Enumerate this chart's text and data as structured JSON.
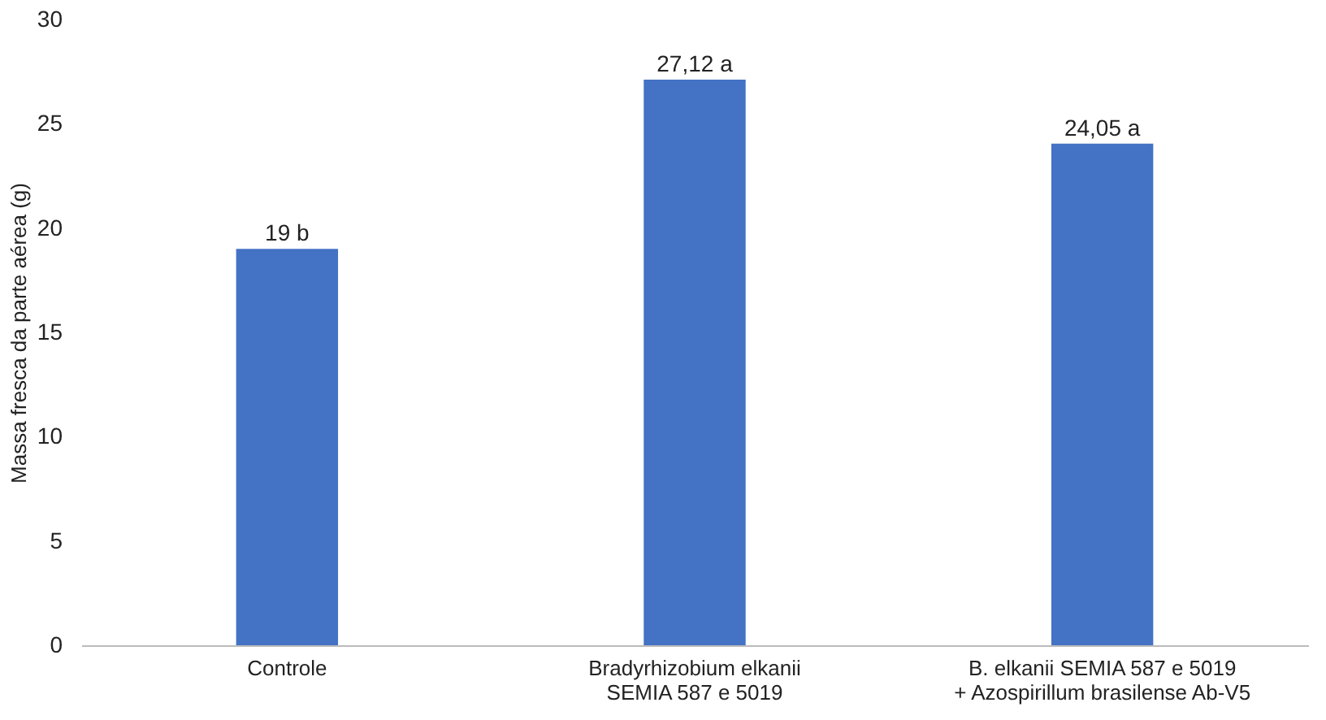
{
  "chart_data": {
    "type": "bar",
    "ylabel": "Massa fresca da parte aérea (g)",
    "categories": [
      "Controle",
      "Bradyrhizobium elkanii\nSEMIA 587 e 5019",
      "B. elkanii SEMIA 587 e 5019\n+ Azospirillum brasilense Ab-V5"
    ],
    "values": [
      19,
      27.12,
      24.05
    ],
    "value_labels": [
      "19 b",
      "27,12 a",
      "24,05 a"
    ],
    "color": "#4472c4",
    "ylim": [
      0,
      30
    ],
    "yticks": [
      0,
      5,
      10,
      15,
      20,
      25,
      30
    ],
    "grid": false
  }
}
